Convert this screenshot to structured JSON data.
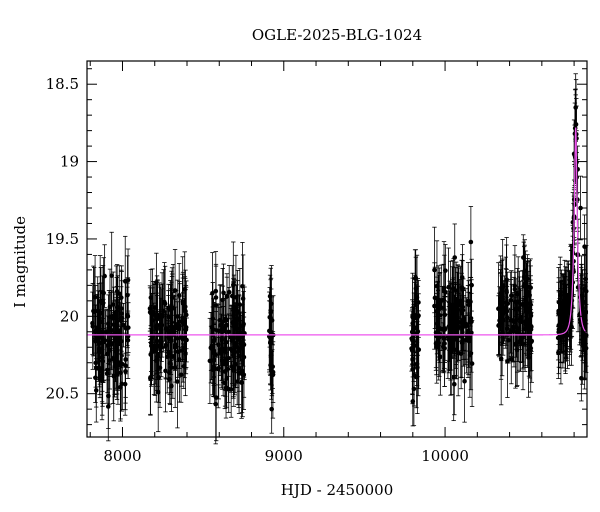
{
  "chart_data": {
    "type": "scatter",
    "title": "OGLE-2025-BLG-1024",
    "xlabel": "HJD - 2450000",
    "ylabel": "I magnitude",
    "xlim": [
      7780,
      10880
    ],
    "ylim": [
      20.78,
      18.35
    ],
    "y_inverted": true,
    "x_major_ticks": [
      8000,
      9000,
      10000
    ],
    "x_tick_labels": [
      "8000",
      "9000",
      "10000"
    ],
    "y_major_ticks": [
      18.5,
      19,
      19.5,
      20,
      20.5
    ],
    "y_tick_labels": [
      "18.5",
      "19",
      "19.5",
      "20",
      "20.5"
    ],
    "grid": false,
    "colors": {
      "points": "#000000",
      "model": "#ee55ee",
      "axes": "#000000"
    },
    "model": {
      "name": "",
      "baseline_mag": 20.12,
      "peak_time": 10810,
      "peak_mag": 18.78,
      "tE_days": 22
    },
    "observing_seasons": [
      {
        "start": 7810,
        "end": 8040,
        "mean_mag": 20.15,
        "scatter": 0.17,
        "n": 120
      },
      {
        "start": 8170,
        "end": 8400,
        "mean_mag": 20.12,
        "scatter": 0.14,
        "n": 120
      },
      {
        "start": 8540,
        "end": 8760,
        "mean_mag": 20.14,
        "scatter": 0.16,
        "n": 120
      },
      {
        "start": 8905,
        "end": 8935,
        "mean_mag": 20.15,
        "scatter": 0.15,
        "n": 22
      },
      {
        "start": 9790,
        "end": 9840,
        "mean_mag": 20.1,
        "scatter": 0.18,
        "n": 35
      },
      {
        "start": 9930,
        "end": 10170,
        "mean_mag": 20.02,
        "scatter": 0.15,
        "n": 120
      },
      {
        "start": 10330,
        "end": 10540,
        "mean_mag": 20.0,
        "scatter": 0.14,
        "n": 110
      },
      {
        "start": 10700,
        "end": 10880,
        "mean_mag": 20.0,
        "scatter": 0.11,
        "n": 130
      }
    ],
    "highlighted_points": [
      {
        "x": 8030,
        "y": 20.0
      },
      {
        "x": 8915,
        "y": 19.87
      },
      {
        "x": 8925,
        "y": 20.6
      },
      {
        "x": 9800,
        "y": 20.55
      },
      {
        "x": 9818,
        "y": 19.75
      },
      {
        "x": 10060,
        "y": 19.62
      },
      {
        "x": 10160,
        "y": 19.52
      },
      {
        "x": 10485,
        "y": 19.62
      },
      {
        "x": 10800,
        "y": 18.95
      },
      {
        "x": 10805,
        "y": 18.82
      },
      {
        "x": 10810,
        "y": 18.76
      },
      {
        "x": 10815,
        "y": 18.85
      },
      {
        "x": 10822,
        "y": 19.05
      },
      {
        "x": 10840,
        "y": 19.3
      },
      {
        "x": 10865,
        "y": 19.55
      },
      {
        "x": 10845,
        "y": 20.4
      }
    ]
  }
}
